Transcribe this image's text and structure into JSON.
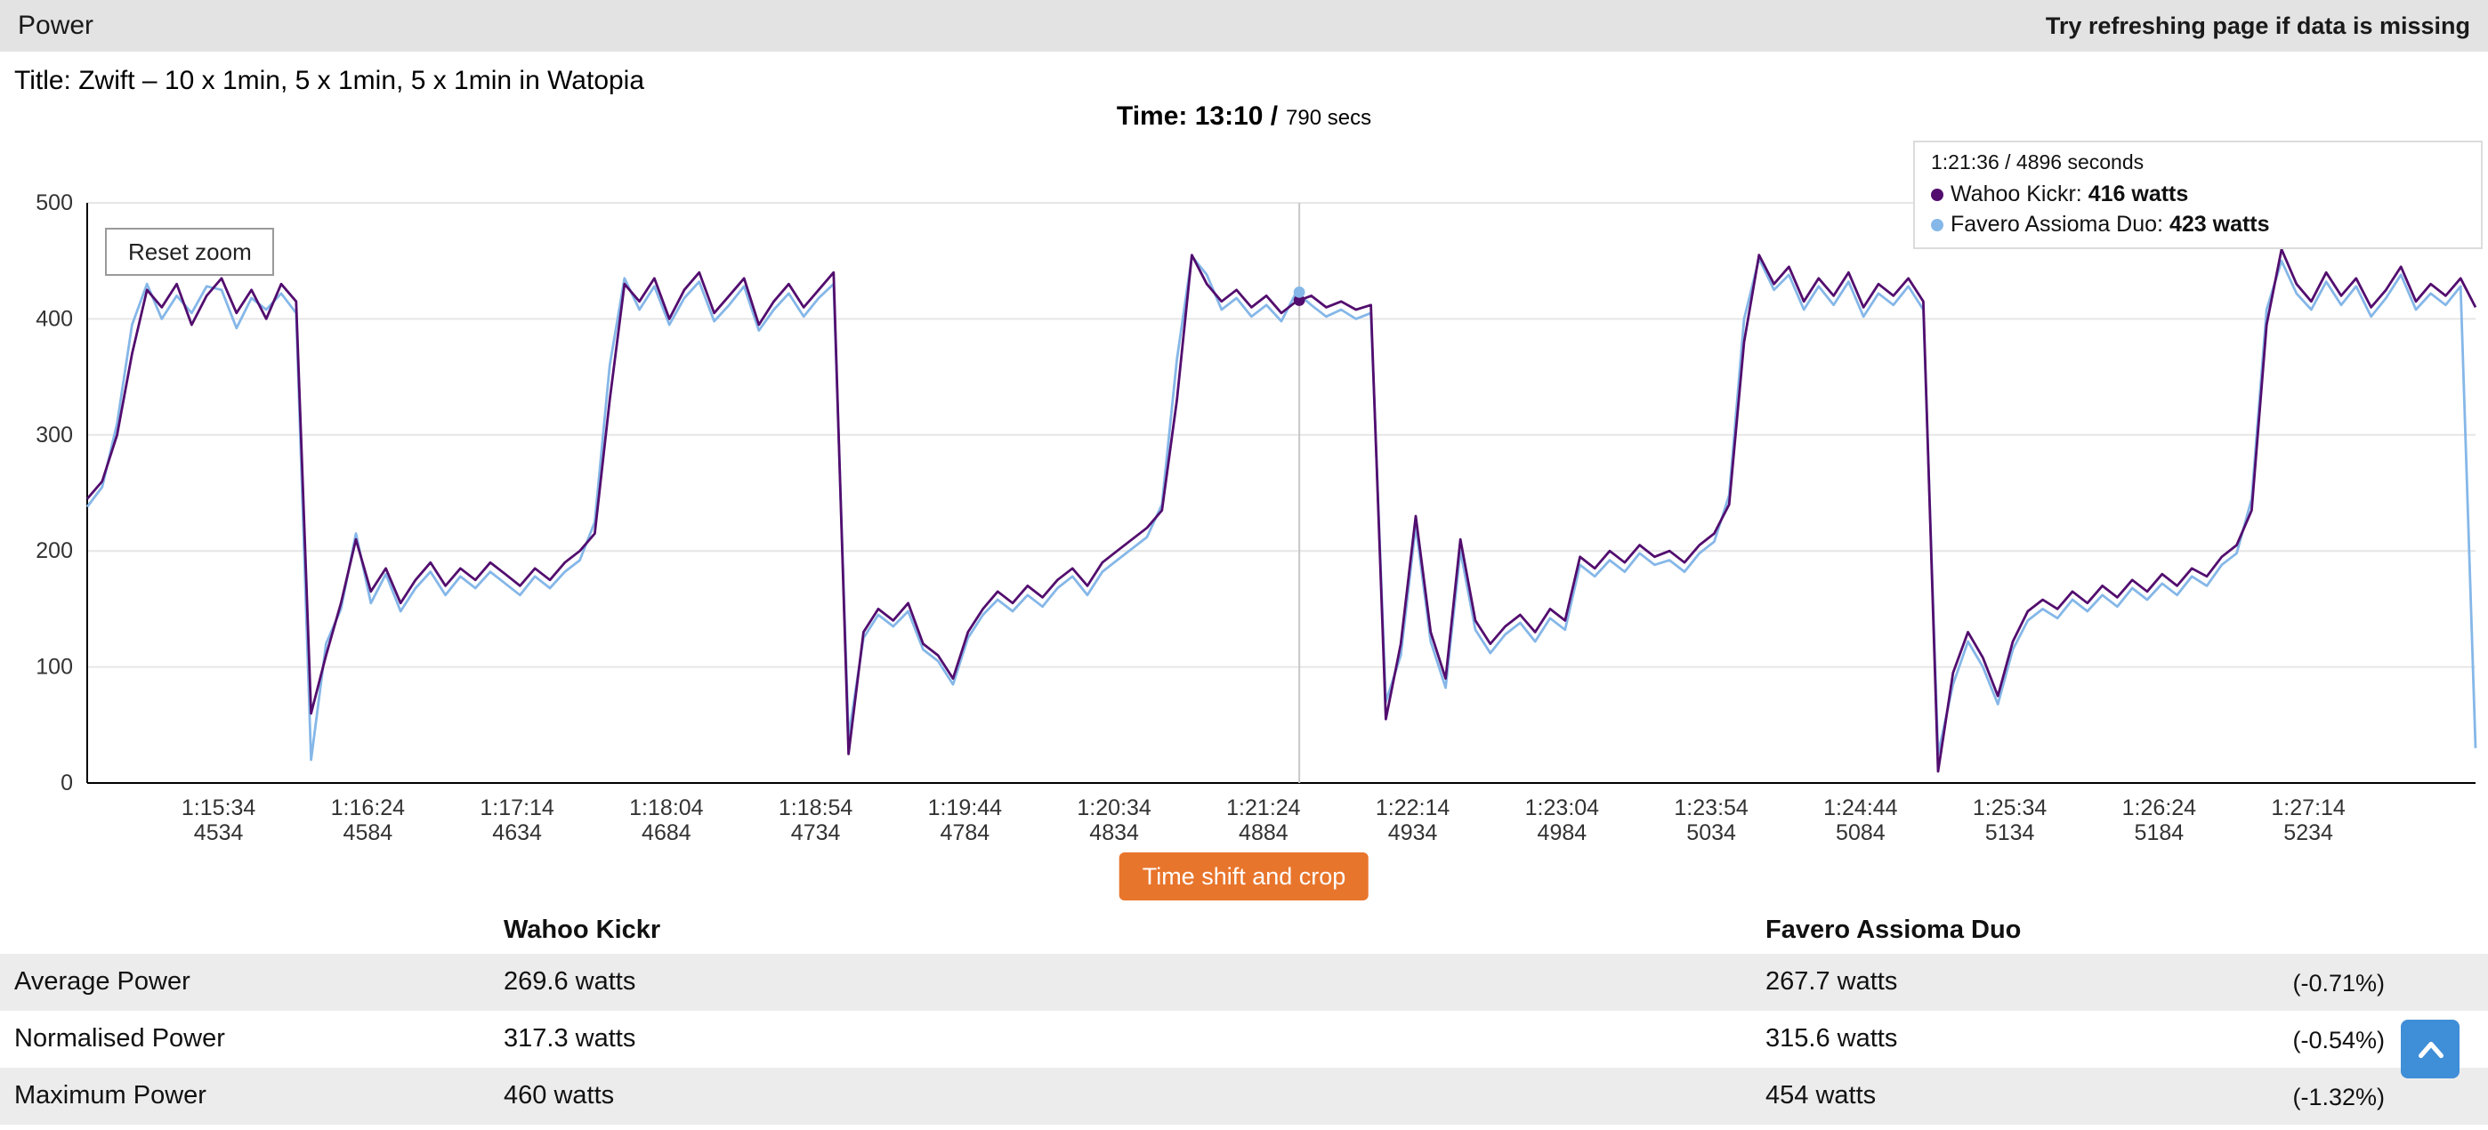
{
  "top_bar": {
    "title": "Power",
    "hint": "Try refreshing page if data is missing"
  },
  "header": {
    "chart_title": "Title: Zwift – 10 x 1min, 5 x 1min, 5 x 1min in Watopia",
    "time_label": "Time: 13:10 /",
    "time_secs": "790 secs"
  },
  "legend": {
    "timestamp": "1:21:36 / 4896 seconds",
    "series": [
      {
        "label": "Wahoo Kickr:",
        "value": "416 watts",
        "color": "#520d6e"
      },
      {
        "label": "Favero Assioma Duo:",
        "value": "423 watts",
        "color": "#85b7e8"
      }
    ]
  },
  "chart": {
    "reset_zoom_label": "Reset zoom"
  },
  "actions": {
    "time_shift_label": "Time shift and crop"
  },
  "chart_data": {
    "type": "line",
    "title": "Power",
    "xlabel": "time",
    "ylabel": "watts",
    "grid": "horizontal",
    "legend_position": "top-right",
    "xlim": [
      4490,
      5290
    ],
    "ylim": [
      0,
      500
    ],
    "y_ticks": [
      0,
      100,
      200,
      300,
      400,
      500
    ],
    "x_ticks": [
      {
        "time": "1:15:34",
        "sec": 4534
      },
      {
        "time": "1:16:24",
        "sec": 4584
      },
      {
        "time": "1:17:14",
        "sec": 4634
      },
      {
        "time": "1:18:04",
        "sec": 4684
      },
      {
        "time": "1:18:54",
        "sec": 4734
      },
      {
        "time": "1:19:44",
        "sec": 4784
      },
      {
        "time": "1:20:34",
        "sec": 4834
      },
      {
        "time": "1:21:24",
        "sec": 4884
      },
      {
        "time": "1:22:14",
        "sec": 4934
      },
      {
        "time": "1:23:04",
        "sec": 4984
      },
      {
        "time": "1:23:54",
        "sec": 5034
      },
      {
        "time": "1:24:44",
        "sec": 5084
      },
      {
        "time": "1:25:34",
        "sec": 5134
      },
      {
        "time": "1:26:24",
        "sec": 5184
      },
      {
        "time": "1:27:14",
        "sec": 5234
      }
    ],
    "x_start": 4490,
    "x_step": 5,
    "crosshair": {
      "x": 4896,
      "values": [
        416,
        423
      ]
    },
    "series": [
      {
        "name": "Wahoo Kickr",
        "color": "#520d6e",
        "values": [
          245,
          260,
          300,
          370,
          425,
          410,
          430,
          395,
          420,
          435,
          405,
          425,
          400,
          430,
          415,
          60,
          110,
          155,
          210,
          165,
          185,
          155,
          175,
          190,
          170,
          185,
          175,
          190,
          180,
          170,
          185,
          175,
          190,
          200,
          215,
          330,
          430,
          415,
          435,
          400,
          425,
          440,
          405,
          420,
          435,
          395,
          415,
          430,
          410,
          425,
          440,
          25,
          130,
          150,
          140,
          155,
          120,
          110,
          90,
          130,
          150,
          165,
          155,
          170,
          160,
          175,
          185,
          170,
          190,
          200,
          210,
          220,
          235,
          330,
          455,
          430,
          415,
          425,
          410,
          420,
          405,
          415,
          420,
          410,
          415,
          408,
          412,
          55,
          120,
          230,
          130,
          90,
          210,
          140,
          120,
          135,
          145,
          130,
          150,
          140,
          195,
          185,
          200,
          190,
          205,
          195,
          200,
          190,
          205,
          215,
          240,
          380,
          455,
          430,
          445,
          415,
          435,
          420,
          440,
          410,
          430,
          420,
          435,
          415,
          10,
          95,
          130,
          108,
          75,
          122,
          148,
          158,
          150,
          165,
          155,
          170,
          160,
          175,
          165,
          180,
          170,
          185,
          178,
          195,
          205,
          235,
          395,
          460,
          430,
          415,
          440,
          420,
          435,
          410,
          425,
          445,
          415,
          430,
          420,
          435,
          410
        ]
      },
      {
        "name": "Favero Assioma Duo",
        "color": "#85b7e8",
        "values": [
          238,
          255,
          310,
          395,
          430,
          400,
          420,
          405,
          428,
          425,
          392,
          418,
          408,
          422,
          405,
          20,
          120,
          150,
          215,
          155,
          180,
          148,
          168,
          182,
          162,
          178,
          168,
          182,
          172,
          162,
          178,
          168,
          182,
          192,
          225,
          360,
          435,
          408,
          428,
          395,
          418,
          432,
          398,
          412,
          428,
          390,
          408,
          422,
          402,
          418,
          430,
          40,
          125,
          145,
          135,
          148,
          115,
          105,
          85,
          125,
          145,
          158,
          148,
          162,
          152,
          168,
          178,
          162,
          182,
          192,
          202,
          212,
          240,
          365,
          454,
          438,
          408,
          418,
          402,
          412,
          398,
          423,
          412,
          402,
          408,
          400,
          405,
          70,
          110,
          222,
          122,
          82,
          200,
          132,
          112,
          128,
          138,
          122,
          142,
          132,
          188,
          178,
          192,
          182,
          198,
          188,
          192,
          182,
          198,
          208,
          248,
          400,
          452,
          425,
          438,
          408,
          428,
          412,
          432,
          402,
          422,
          412,
          428,
          408,
          25,
          85,
          122,
          100,
          68,
          115,
          140,
          150,
          142,
          158,
          148,
          162,
          152,
          168,
          158,
          172,
          162,
          178,
          170,
          188,
          198,
          245,
          408,
          450,
          422,
          408,
          432,
          412,
          428,
          402,
          418,
          438,
          408,
          422,
          412,
          428,
          30
        ]
      }
    ]
  },
  "table": {
    "columns": [
      "",
      "Wahoo Kickr",
      "Favero Assioma Duo",
      ""
    ],
    "rows": [
      {
        "metric": "Average Power",
        "wahoo": "269.6 watts",
        "favero": "267.7 watts",
        "diff": "(-0.71%)"
      },
      {
        "metric": "Normalised Power",
        "wahoo": "317.3 watts",
        "favero": "315.6 watts",
        "diff": "(-0.54%)"
      },
      {
        "metric": "Maximum Power",
        "wahoo": "460 watts",
        "favero": "454 watts",
        "diff": "(-1.32%)"
      }
    ]
  },
  "scroll_top": {
    "icon": "chevron-up"
  },
  "colors": {
    "topbar_bg": "#e3e3e3",
    "accent_orange": "#e8752c",
    "accent_blue": "#3f8ed8",
    "row_stripe": "#ececec"
  }
}
